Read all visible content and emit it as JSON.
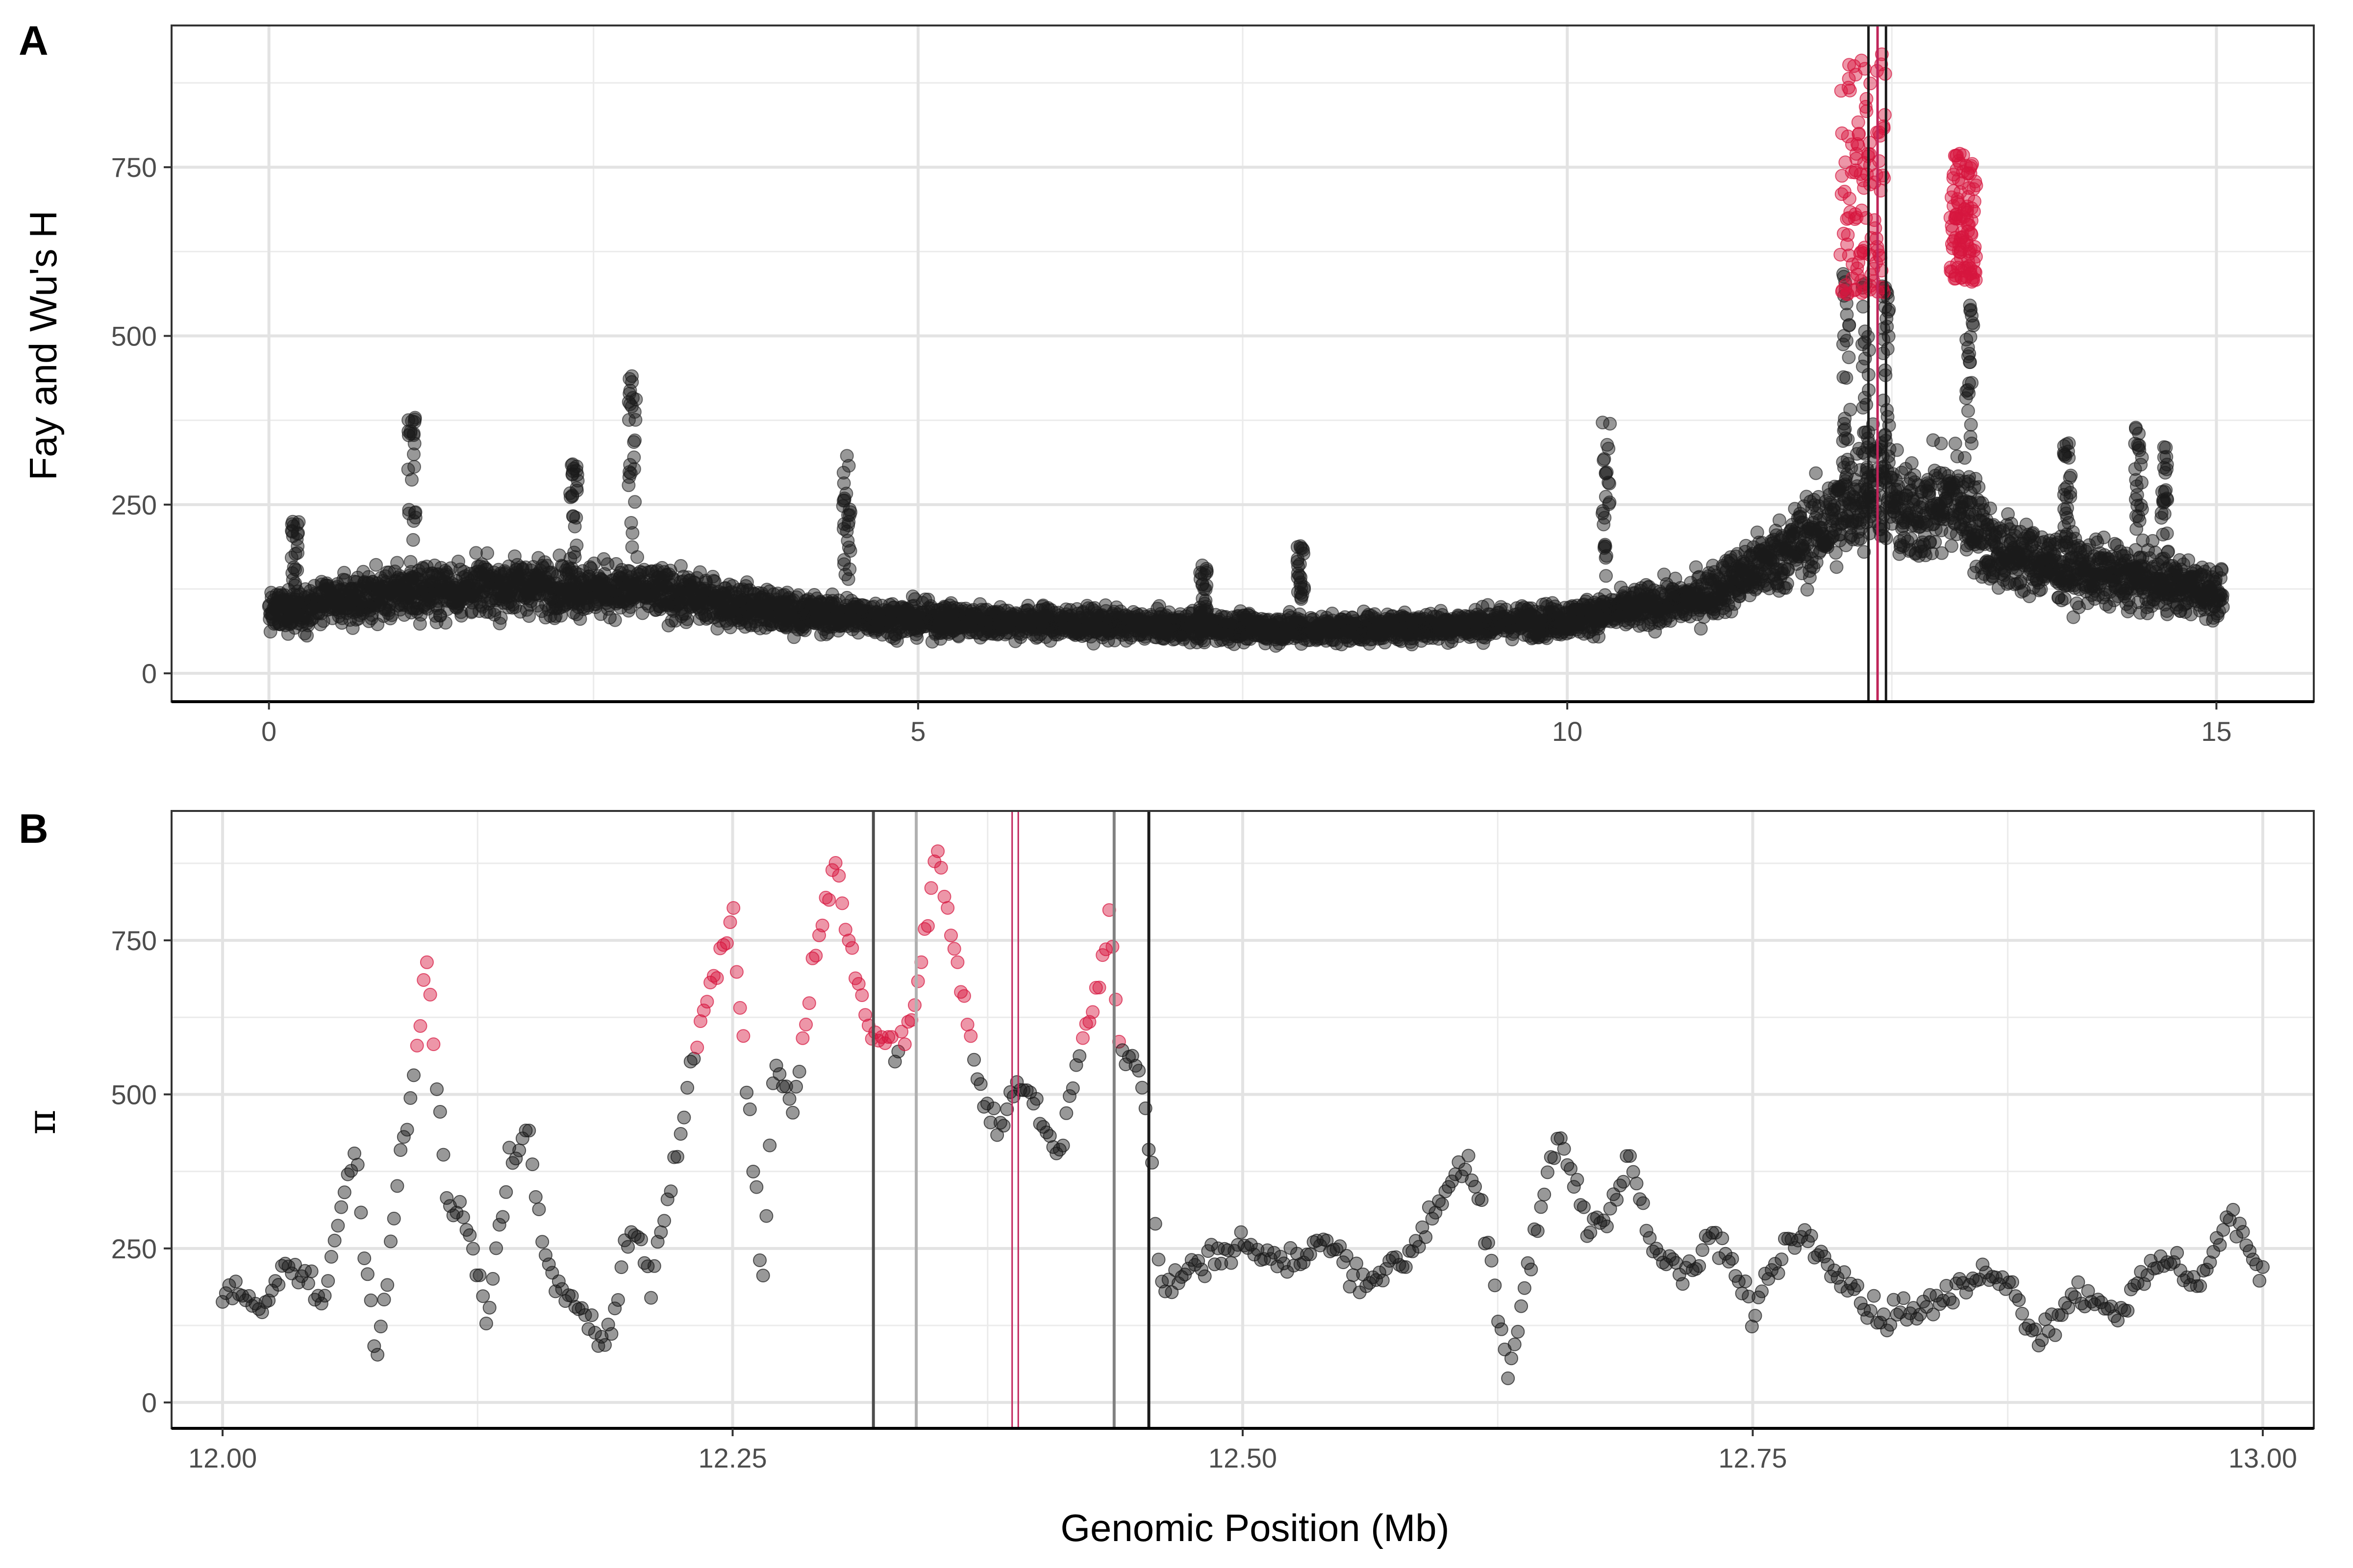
{
  "chart_data": [
    {
      "panel": "A",
      "type": "scatter",
      "ylabel": "Fay and Wu's H",
      "xlabel": "",
      "xlim": [
        -0.75,
        15.75
      ],
      "ylim": [
        -42,
        960
      ],
      "xticks": [
        0,
        5,
        10,
        15
      ],
      "yticks": [
        0,
        250,
        500,
        750
      ],
      "grid": true,
      "colors": {
        "point": "#1a1a1a",
        "highlight": "#d6163f",
        "vline_dark": "#1a1a1a",
        "vline_red": "#c0245a"
      },
      "baseline_profile": [
        [
          0,
          90
        ],
        [
          1,
          120
        ],
        [
          2,
          130
        ],
        [
          3,
          120
        ],
        [
          4,
          90
        ],
        [
          5,
          80
        ],
        [
          6,
          75
        ],
        [
          7,
          70
        ],
        [
          8,
          65
        ],
        [
          9,
          70
        ],
        [
          10,
          80
        ],
        [
          11,
          110
        ],
        [
          11.6,
          170
        ],
        [
          12,
          220
        ],
        [
          12.4,
          290
        ],
        [
          12.6,
          230
        ],
        [
          13,
          260
        ],
        [
          13.3,
          180
        ],
        [
          14,
          150
        ],
        [
          15,
          120
        ]
      ],
      "spikes": [
        {
          "x": 0.2,
          "y": 230
        },
        {
          "x": 1.1,
          "y": 380
        },
        {
          "x": 2.35,
          "y": 310
        },
        {
          "x": 2.8,
          "y": 445
        },
        {
          "x": 4.45,
          "y": 325
        },
        {
          "x": 7.2,
          "y": 160
        },
        {
          "x": 7.95,
          "y": 190
        },
        {
          "x": 10.3,
          "y": 375
        },
        {
          "x": 12.15,
          "y": 600
        },
        {
          "x": 12.3,
          "y": 580
        },
        {
          "x": 12.45,
          "y": 580
        },
        {
          "x": 13.1,
          "y": 560
        },
        {
          "x": 13.85,
          "y": 345
        },
        {
          "x": 14.4,
          "y": 395
        },
        {
          "x": 14.6,
          "y": 345
        }
      ],
      "highlight_clusters": [
        {
          "xmin": 12.1,
          "xmax": 12.45,
          "ymin": 560,
          "ymax": 920
        },
        {
          "xmin": 12.95,
          "xmax": 13.15,
          "ymin": 580,
          "ymax": 770
        }
      ],
      "vlines": [
        {
          "x": 12.32,
          "color": "dark"
        },
        {
          "x": 12.39,
          "color": "red"
        },
        {
          "x": 12.455,
          "color": "dark"
        }
      ]
    },
    {
      "panel": "B",
      "type": "scatter",
      "ylabel": "π",
      "xlabel": "Genomic Position (Mb)",
      "xlim": [
        11.975,
        13.025
      ],
      "ylim": [
        -42,
        960
      ],
      "xticks": [
        "12.00",
        "12.25",
        "12.50",
        "12.75",
        "13.00"
      ],
      "yticks": [
        0,
        250,
        500,
        750
      ],
      "grid": true,
      "colors": {
        "point": "#1a1a1a",
        "highlight": "#d6163f"
      },
      "threshold": 575,
      "profile": [
        [
          12.0,
          185
        ],
        [
          12.02,
          160
        ],
        [
          12.03,
          230
        ],
        [
          12.05,
          170
        ],
        [
          12.065,
          420
        ],
        [
          12.075,
          60
        ],
        [
          12.085,
          330
        ],
        [
          12.095,
          560
        ],
        [
          12.1,
          720
        ],
        [
          12.11,
          330
        ],
        [
          12.12,
          300
        ],
        [
          12.13,
          140
        ],
        [
          12.14,
          380
        ],
        [
          12.15,
          430
        ],
        [
          12.16,
          200
        ],
        [
          12.18,
          130
        ],
        [
          12.19,
          100
        ],
        [
          12.2,
          300
        ],
        [
          12.21,
          190
        ],
        [
          12.22,
          340
        ],
        [
          12.23,
          560
        ],
        [
          12.24,
          700
        ],
        [
          12.25,
          790
        ],
        [
          12.26,
          400
        ],
        [
          12.265,
          180
        ],
        [
          12.27,
          550
        ],
        [
          12.28,
          480
        ],
        [
          12.29,
          720
        ],
        [
          12.3,
          880
        ],
        [
          12.31,
          700
        ],
        [
          12.32,
          590
        ],
        [
          12.33,
          570
        ],
        [
          12.34,
          650
        ],
        [
          12.35,
          900
        ],
        [
          12.36,
          720
        ],
        [
          12.37,
          520
        ],
        [
          12.38,
          440
        ],
        [
          12.39,
          520
        ],
        [
          12.4,
          480
        ],
        [
          12.41,
          400
        ],
        [
          12.42,
          580
        ],
        [
          12.43,
          680
        ],
        [
          12.435,
          800
        ],
        [
          12.44,
          560
        ],
        [
          12.45,
          540
        ],
        [
          12.455,
          400
        ],
        [
          12.46,
          180
        ],
        [
          12.48,
          230
        ],
        [
          12.5,
          260
        ],
        [
          12.52,
          220
        ],
        [
          12.54,
          260
        ],
        [
          12.56,
          200
        ],
        [
          12.58,
          230
        ],
        [
          12.6,
          350
        ],
        [
          12.61,
          400
        ],
        [
          12.62,
          260
        ],
        [
          12.63,
          30
        ],
        [
          12.64,
          220
        ],
        [
          12.655,
          440
        ],
        [
          12.67,
          280
        ],
        [
          12.68,
          320
        ],
        [
          12.69,
          400
        ],
        [
          12.7,
          250
        ],
        [
          12.72,
          200
        ],
        [
          12.73,
          280
        ],
        [
          12.75,
          150
        ],
        [
          12.77,
          280
        ],
        [
          12.79,
          230
        ],
        [
          12.81,
          140
        ],
        [
          12.84,
          160
        ],
        [
          12.87,
          220
        ],
        [
          12.89,
          110
        ],
        [
          12.91,
          180
        ],
        [
          12.93,
          150
        ],
        [
          12.95,
          230
        ],
        [
          12.97,
          200
        ],
        [
          12.985,
          310
        ],
        [
          13.0,
          190
        ]
      ],
      "vlines": [
        {
          "x": 12.319,
          "color": "#4d4d4d"
        },
        {
          "x": 12.34,
          "color": "#b0b0b0"
        },
        {
          "x": 12.387,
          "color": "#c0245a"
        },
        {
          "x": 12.39,
          "color": "#c0245a"
        },
        {
          "x": 12.437,
          "color": "#808080"
        },
        {
          "x": 12.454,
          "color": "#1a1a1a"
        }
      ]
    }
  ]
}
